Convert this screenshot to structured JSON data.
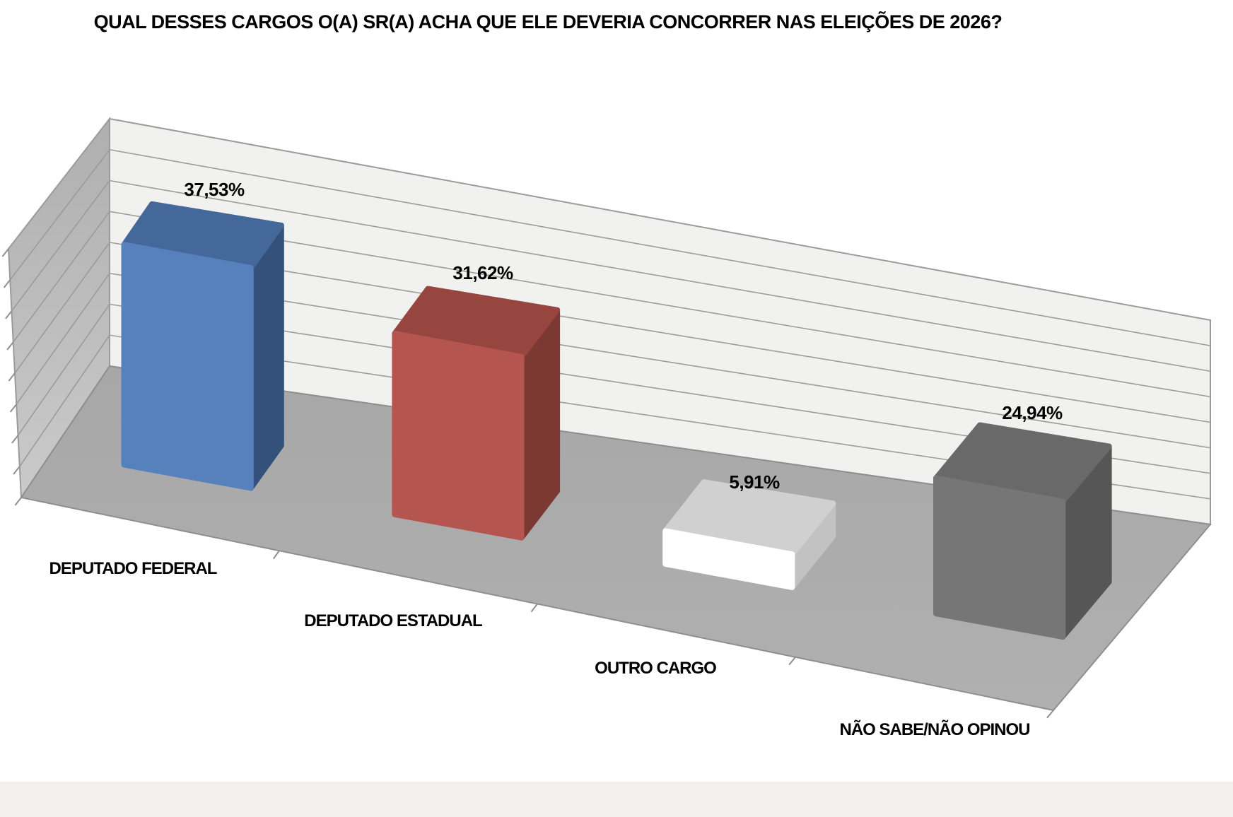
{
  "chart_data": {
    "type": "bar",
    "projection": "3d-column",
    "title": "QUAL DESSES CARGOS O(A) SR(A) ACHA QUE ELE DEVERIA CONCORRER NAS ELEIÇÕES DE 2026?",
    "categories": [
      "DEPUTADO FEDERAL",
      "DEPUTADO ESTADUAL",
      "OUTRO CARGO",
      "NÃO SABE/NÃO OPINOU"
    ],
    "values": [
      37.53,
      31.62,
      5.91,
      24.94
    ],
    "value_labels": [
      "37,53%",
      "31,62%",
      "5,91%",
      "24,94%"
    ],
    "xlabel": "",
    "ylabel": "",
    "ylim": [
      0,
      40
    ],
    "gridline_intervals": 8,
    "legend": "none",
    "bar_colors": [
      {
        "name": "blue",
        "front": "#5681BD",
        "top": "#44689A",
        "side": "#34517B"
      },
      {
        "name": "red",
        "front": "#B4564F",
        "top": "#97453F",
        "side": "#7C3833"
      },
      {
        "name": "white",
        "front": "#FFFFFF",
        "top": "#D0D0D0",
        "side": "#C2C2C2"
      },
      {
        "name": "gray",
        "front": "#767676",
        "top": "#696969",
        "side": "#565656"
      }
    ],
    "back_wall_color": "#F1F1EF",
    "left_wall_color_top": "#AFAFAF",
    "left_wall_color_bottom": "#CACACA",
    "floor_color": "#ACACAC",
    "grid_color": "#9B9B9B",
    "label_color": "#000000"
  }
}
